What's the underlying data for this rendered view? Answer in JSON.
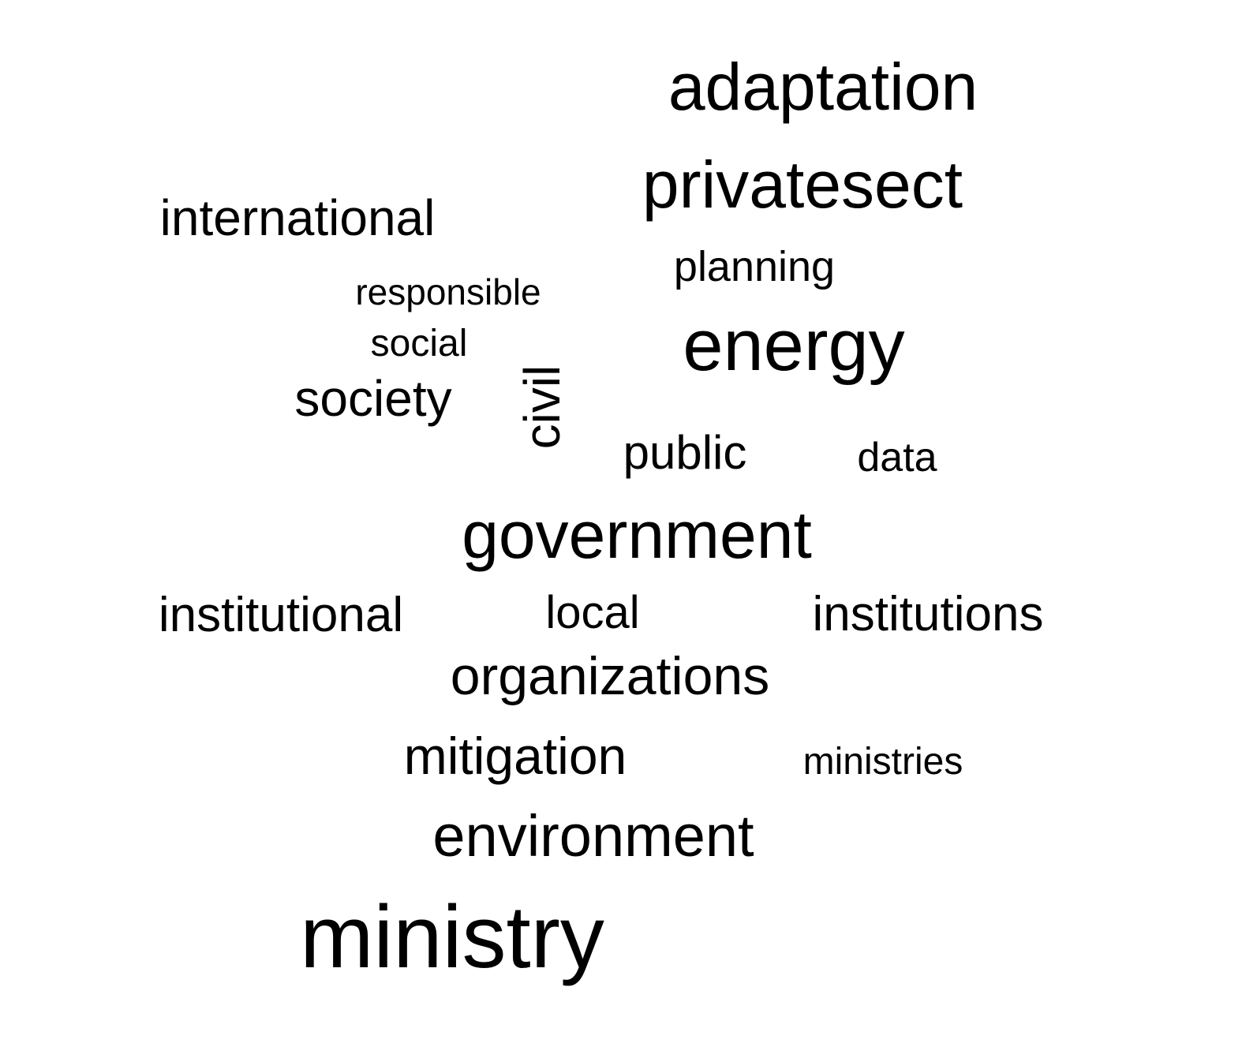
{
  "cloud": {
    "text_color": "#000000",
    "background_color": "#ffffff",
    "words": [
      {
        "text": "adaptation"
      },
      {
        "text": "privatesect"
      },
      {
        "text": "international"
      },
      {
        "text": "planning"
      },
      {
        "text": "responsible"
      },
      {
        "text": "energy"
      },
      {
        "text": "social"
      },
      {
        "text": "society"
      },
      {
        "text": "civil"
      },
      {
        "text": "public"
      },
      {
        "text": "data"
      },
      {
        "text": "government"
      },
      {
        "text": "institutional"
      },
      {
        "text": "local"
      },
      {
        "text": "institutions"
      },
      {
        "text": "organizations"
      },
      {
        "text": "mitigation"
      },
      {
        "text": "ministries"
      },
      {
        "text": "environment"
      },
      {
        "text": "ministry"
      }
    ]
  }
}
